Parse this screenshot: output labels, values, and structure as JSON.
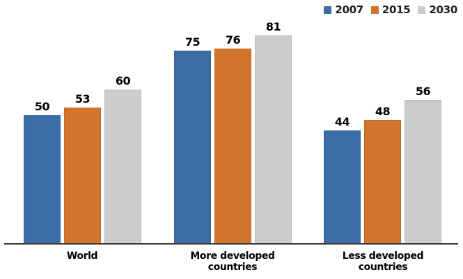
{
  "chart_data": {
    "type": "bar",
    "categories": [
      "World",
      "More developed countries",
      "Less developed countries"
    ],
    "series": [
      {
        "name": "2007",
        "color": "#3C6DA6",
        "border_color": "#356195",
        "values": [
          50,
          75,
          44
        ]
      },
      {
        "name": "2015",
        "color": "#D0752B",
        "border_color": "#BF6823",
        "values": [
          53,
          76,
          48
        ]
      },
      {
        "name": "2030",
        "color": "#CCCCCC",
        "border_color": "#BDBDBD",
        "values": [
          60,
          81,
          56
        ]
      }
    ],
    "title": "",
    "xlabel": "",
    "ylabel": "",
    "ylim": [
      0,
      95
    ],
    "grid": false,
    "y_axis_visible": false,
    "legend_position": "top-right",
    "data_labels": true
  },
  "colors": {
    "axis_line": "#3d3d3d",
    "label_text": "#000000",
    "background": "#ffffff"
  }
}
